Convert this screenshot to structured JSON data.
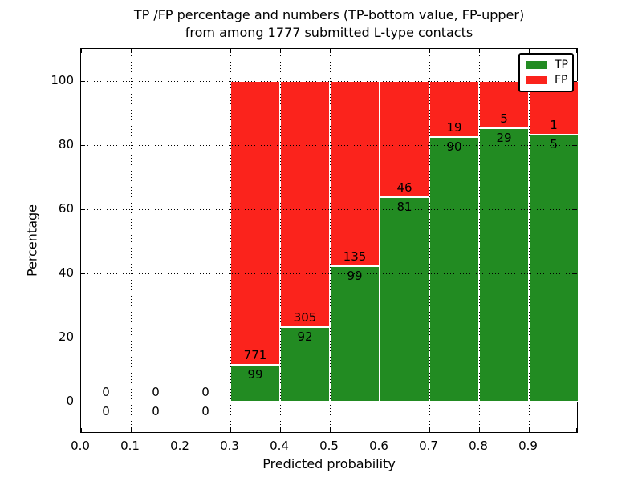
{
  "title": {
    "line1": "TP /FP percentage and numbers (TP-bottom value, FP-upper)",
    "line2": "from among 1777 submitted L-type contacts"
  },
  "axes": {
    "xlabel": "Predicted probability",
    "ylabel": "Percentage",
    "xticks": [
      "0.0",
      "0.1",
      "0.2",
      "0.3",
      "0.4",
      "0.5",
      "0.6",
      "0.7",
      "0.8",
      "0.9"
    ],
    "yticks": [
      "0",
      "20",
      "40",
      "60",
      "80",
      "100"
    ]
  },
  "legend": [
    {
      "label": "TP",
      "color": "#228b22"
    },
    {
      "label": "FP",
      "color": "#fb231c"
    }
  ],
  "chart_data": {
    "type": "bar",
    "stacked": true,
    "normalized": "percent",
    "title": "TP /FP percentage and numbers (TP-bottom value, FP-upper) from among 1777 submitted L-type contacts",
    "xlabel": "Predicted probability",
    "ylabel": "Percentage",
    "xlim": [
      0.0,
      1.0
    ],
    "ylim": [
      -10,
      110
    ],
    "grid": true,
    "grid_style": "dotted",
    "legend_position": "upper right",
    "bin_edges": [
      0.0,
      0.1,
      0.2,
      0.3,
      0.4,
      0.5,
      0.6,
      0.7,
      0.8,
      0.9,
      1.0
    ],
    "series": [
      {
        "name": "TP",
        "color": "#228b22",
        "counts": [
          0,
          0,
          0,
          99,
          92,
          99,
          81,
          90,
          29,
          5
        ]
      },
      {
        "name": "FP",
        "color": "#fb231c",
        "counts": [
          0,
          0,
          0,
          771,
          305,
          135,
          46,
          19,
          5,
          1
        ]
      }
    ],
    "total_submitted": 1777
  }
}
